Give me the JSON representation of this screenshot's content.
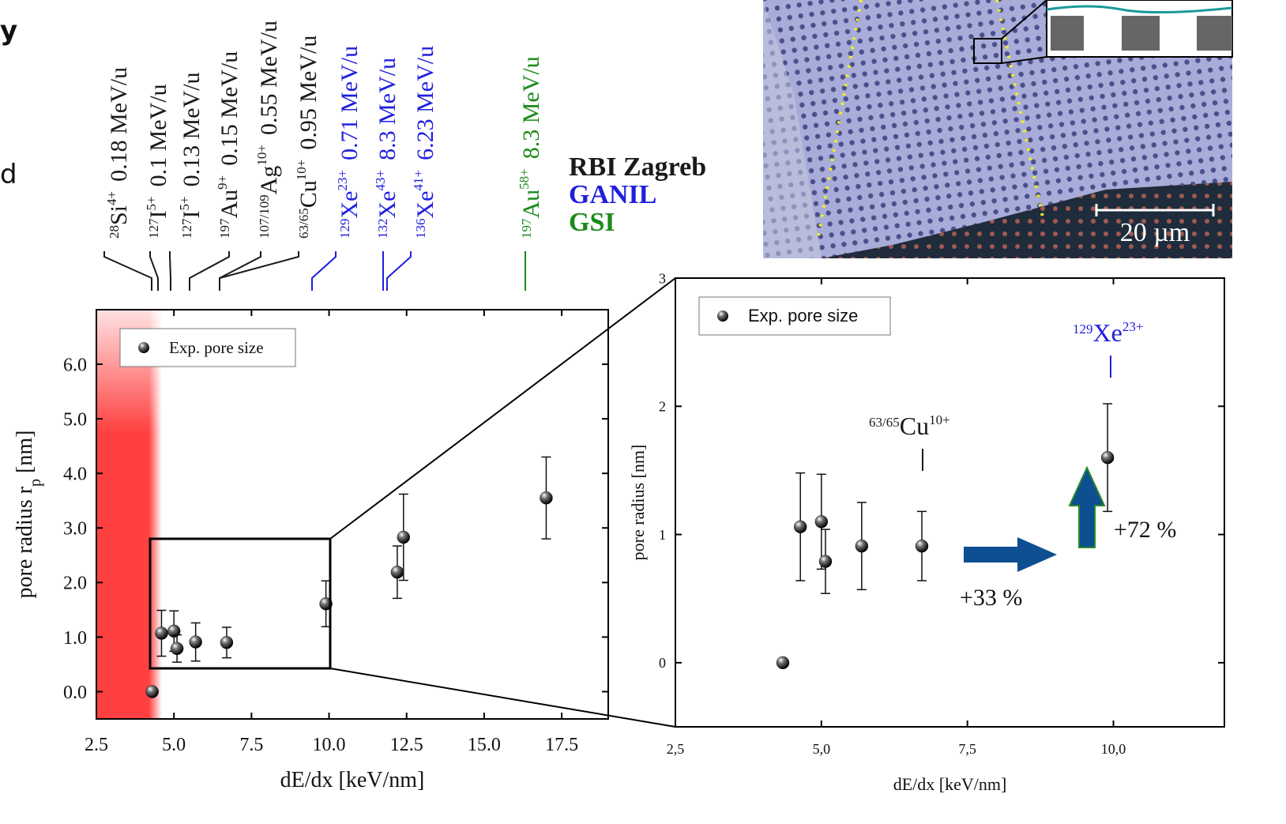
{
  "fragments": [
    "y",
    "d"
  ],
  "photo": {
    "scale_bar": "20 µm"
  },
  "ions": [
    {
      "mass": "28",
      "element": "Si",
      "charge": "4+",
      "energy": "0.18 MeV/u",
      "color": "#1a1a1a"
    },
    {
      "mass": "127",
      "element": "I",
      "charge": "5+",
      "energy": "0.1 MeV/u",
      "color": "#1a1a1a"
    },
    {
      "mass": "127",
      "element": "I",
      "charge": "5+",
      "energy": "0.13 MeV/u",
      "color": "#1a1a1a"
    },
    {
      "mass": "197",
      "element": "Au",
      "charge": "9+",
      "energy": "0.15 MeV/u",
      "color": "#1a1a1a"
    },
    {
      "mass": "107/109",
      "element": "Ag",
      "charge": "10+",
      "energy": "0.55 MeV/u",
      "color": "#1a1a1a"
    },
    {
      "mass": "63/65",
      "element": "Cu",
      "charge": "10+",
      "energy": "0.95 MeV/u",
      "color": "#1a1a1a"
    },
    {
      "mass": "129",
      "element": "Xe",
      "charge": "23+",
      "energy": "0.71 MeV/u",
      "color": "#1f1fe0"
    },
    {
      "mass": "132",
      "element": "Xe",
      "charge": "43+",
      "energy": "8.3 MeV/u",
      "color": "#1f1fe0"
    },
    {
      "mass": "136",
      "element": "Xe",
      "charge": "41+",
      "energy": "6.23 MeV/u",
      "color": "#1f1fe0"
    },
    {
      "mass": "197",
      "element": "Au",
      "charge": "58+",
      "energy": "8.3 MeV/u",
      "color": "#1a8a1a"
    }
  ],
  "facilities": [
    {
      "name": "RBI Zagreb",
      "color": "#1a1a1a"
    },
    {
      "name": "GANIL",
      "color": "#1f1fe0"
    },
    {
      "name": "GSI",
      "color": "#1a8a1a"
    }
  ],
  "chart_data": [
    {
      "type": "scatter",
      "xlabel": "dE/dx [keV/nm]",
      "ylabel": [
        "pore radius r",
        "p",
        " [nm]"
      ],
      "xlim": [
        2.5,
        19.0
      ],
      "ylim": [
        -0.5,
        7.0
      ],
      "xticks": [
        2.5,
        {
          "value": 5,
          "label": "5.0"
        },
        7.5,
        {
          "value": 10,
          "label": "10.0"
        },
        12.5,
        {
          "value": 15,
          "label": "15.0"
        },
        17.5
      ],
      "yticks": [
        {
          "value": 0,
          "label": "0.0"
        },
        {
          "value": 1,
          "label": "1.0"
        },
        {
          "value": 2,
          "label": "2.0"
        },
        {
          "value": 3,
          "label": "3.0"
        },
        {
          "value": 4,
          "label": "4.0"
        },
        {
          "value": 5,
          "label": "5.0"
        },
        {
          "value": 6,
          "label": "6.0"
        }
      ],
      "legend": "upper left",
      "series": [
        {
          "name": "Exp. pore size",
          "color": "#111111",
          "x": [
            4.3,
            4.6,
            5.0,
            5.1,
            5.7,
            6.7,
            9.9,
            12.2,
            12.4,
            17.0
          ],
          "values": [
            0.0,
            1.07,
            1.11,
            0.79,
            0.91,
            0.9,
            1.61,
            2.19,
            2.83,
            3.55
          ],
          "errors": [
            null,
            0.42,
            0.37,
            0.25,
            0.35,
            0.28,
            0.42,
            0.48,
            0.79,
            0.75
          ]
        }
      ]
    },
    {
      "type": "scatter",
      "xlabel": "dE/dx [keV/nm]",
      "ylabel": [
        "pore radius [nm]"
      ],
      "xlim": [
        2.5,
        11.9
      ],
      "ylim": [
        -0.5,
        3.0
      ],
      "xticks": [
        {
          "value": 2.5,
          "label": "2,5"
        },
        {
          "value": 5,
          "label": "5,0"
        },
        {
          "value": 7.5,
          "label": "7,5"
        },
        {
          "value": 10,
          "label": "10,0"
        }
      ],
      "yticks": [
        0,
        1,
        2,
        3
      ],
      "legend": "upper left",
      "series": [
        {
          "name": "Exp. pore size",
          "color": "#111111",
          "x": [
            4.34,
            4.64,
            5.0,
            5.07,
            5.69,
            6.72,
            9.9
          ],
          "values": [
            0.0,
            1.06,
            1.1,
            0.79,
            0.91,
            0.91,
            1.6
          ],
          "errors": [
            null,
            0.42,
            0.37,
            0.25,
            0.34,
            0.27,
            0.42
          ]
        }
      ],
      "annotations": [
        {
          "mass": "63/65",
          "element": "Cu",
          "charge": "10+",
          "color": "#1a1a1a"
        },
        {
          "mass": "129",
          "element": "Xe",
          "charge": "23+",
          "color": "#1f1fe0"
        },
        {
          "text": "+33 %"
        },
        {
          "text": "+72 %"
        }
      ]
    }
  ]
}
